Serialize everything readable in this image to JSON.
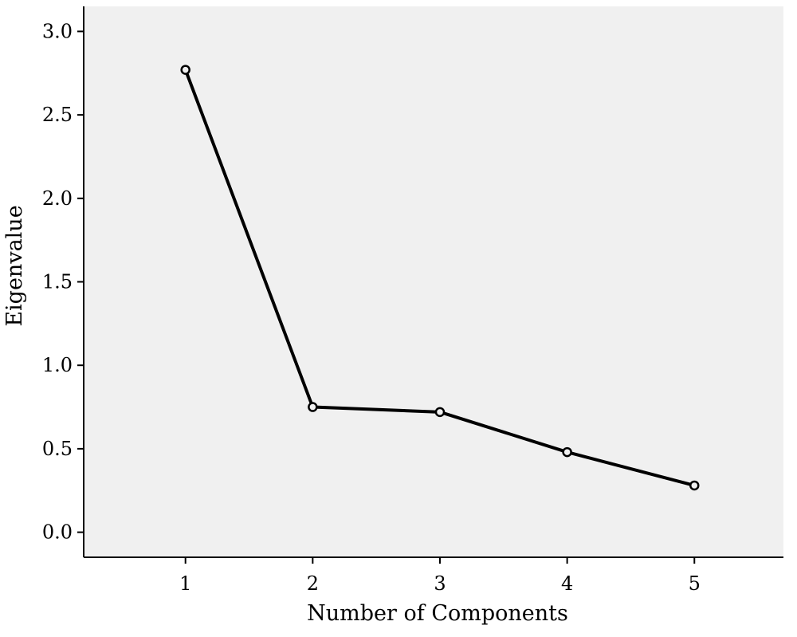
{
  "chart_data": {
    "type": "line",
    "title": "",
    "xlabel": "Number of Components",
    "ylabel": "Eigenvalue",
    "x": [
      1,
      2,
      3,
      4,
      5
    ],
    "series": [
      {
        "values": [
          2.77,
          0.75,
          0.72,
          0.48,
          0.28
        ]
      }
    ],
    "xlim": [
      0.2,
      5.7
    ],
    "ylim": [
      -0.15,
      3.15
    ],
    "xticks": [
      1,
      2,
      3,
      4,
      5
    ],
    "xtick_labels": [
      "1",
      "2",
      "3",
      "4",
      "5"
    ],
    "yticks": [
      0.0,
      0.5,
      1.0,
      1.5,
      2.0,
      2.5,
      3.0
    ],
    "ytick_labels": [
      "0.0",
      "0.5",
      "1.0",
      "1.5",
      "2.0",
      "2.5",
      "3.0"
    ],
    "grid": false,
    "legend": "none",
    "colors": {
      "plot_background": "#f0f0f0",
      "line": "#000000",
      "marker_fill": "#f0f0f0"
    }
  }
}
